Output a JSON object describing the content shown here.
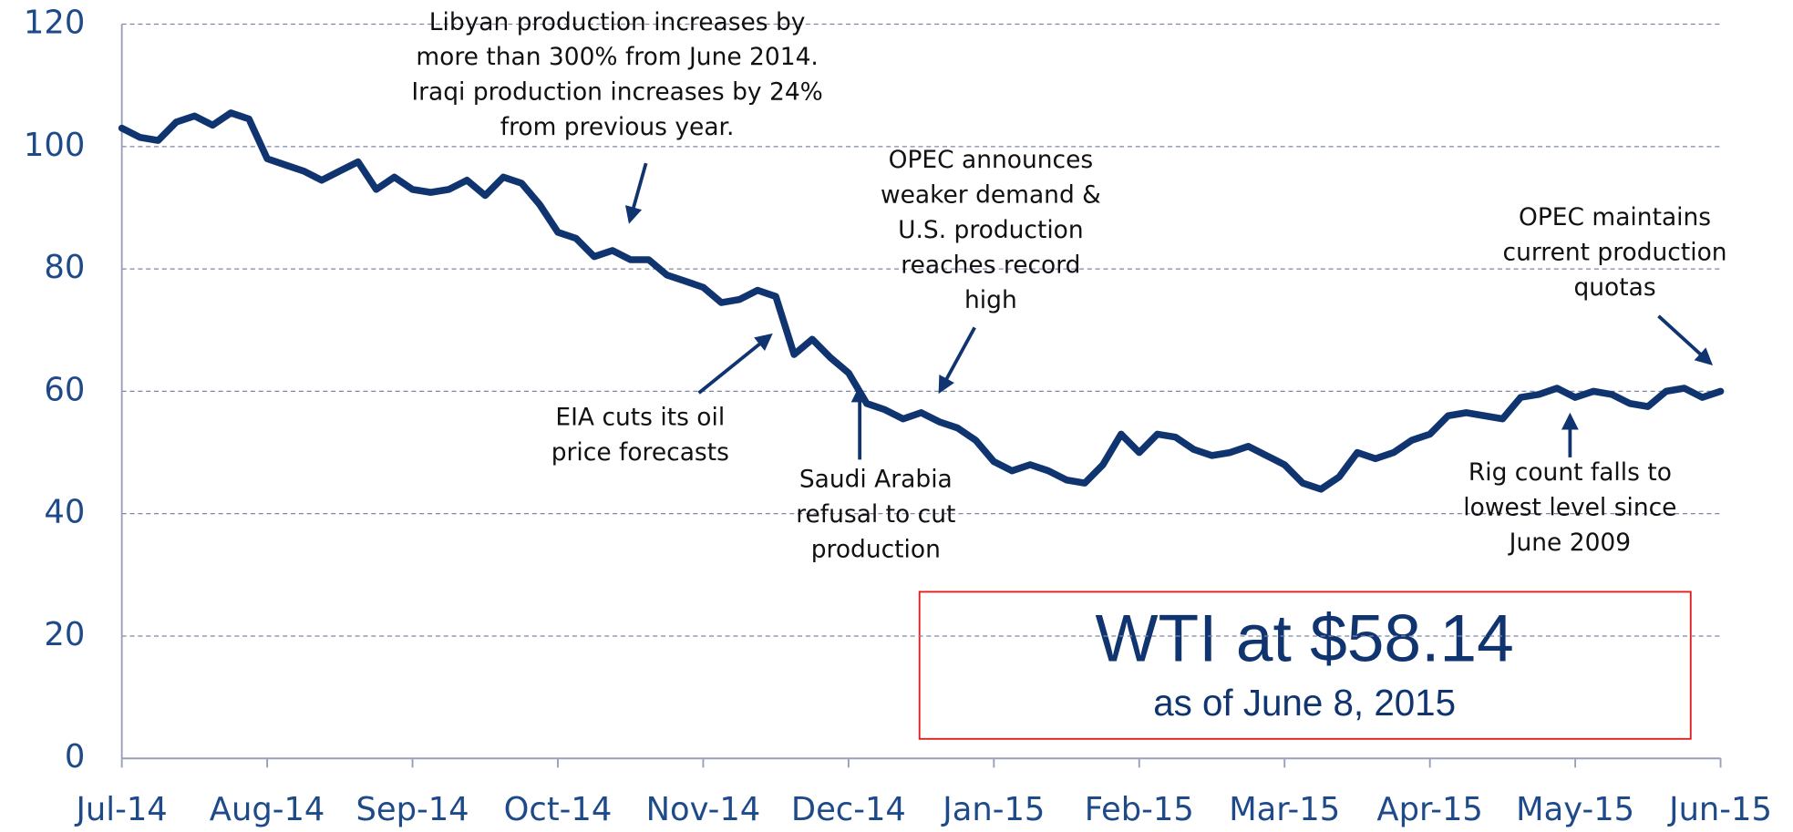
{
  "chart_data": {
    "type": "line",
    "categories": [
      "Jul-14",
      null,
      null,
      null,
      null,
      null,
      null,
      null,
      "Aug-14",
      null,
      null,
      null,
      null,
      null,
      null,
      null,
      "Sep-14",
      null,
      null,
      null,
      null,
      null,
      null,
      null,
      "Oct-14",
      null,
      null,
      null,
      null,
      null,
      null,
      null,
      "Nov-14",
      null,
      null,
      null,
      null,
      null,
      null,
      null,
      "Dec-14",
      null,
      null,
      null,
      null,
      null,
      null,
      null,
      "Jan-15",
      null,
      null,
      null,
      null,
      null,
      null,
      null,
      "Feb-15",
      null,
      null,
      null,
      null,
      null,
      null,
      null,
      "Mar-15",
      null,
      null,
      null,
      null,
      null,
      null,
      null,
      "Apr-15",
      null,
      null,
      null,
      null,
      null,
      null,
      null,
      "May-15",
      null,
      null,
      null,
      null,
      null,
      null,
      null,
      "Jun-15"
    ],
    "series": [
      {
        "color": "#0f3470",
        "values": [
          103,
          101.5,
          101,
          104,
          105,
          103.5,
          105.5,
          104.5,
          98,
          97,
          96,
          94.5,
          96,
          97.5,
          93,
          95,
          93,
          92.5,
          93,
          94.5,
          92,
          95,
          94,
          90.5,
          86,
          85,
          82,
          83,
          81.5,
          81.5,
          79,
          78,
          77,
          74.5,
          75,
          76.5,
          75.5,
          66,
          68.5,
          65.5,
          63,
          58,
          57,
          55.5,
          56.5,
          55,
          54,
          52,
          48.5,
          47,
          48,
          47,
          45.5,
          45,
          48,
          53,
          50,
          53,
          52.5,
          50.5,
          49.5,
          50,
          51,
          49.5,
          48,
          45,
          44,
          46,
          50,
          49,
          50,
          52,
          53,
          56,
          56.5,
          56,
          55.5,
          59,
          59.5,
          60.5,
          59,
          60,
          59.5,
          58,
          57.5,
          60,
          60.5,
          59,
          60
        ]
      }
    ],
    "ylim": [
      0,
      120
    ],
    "yticks": [
      0,
      20,
      40,
      60,
      80,
      100,
      120
    ],
    "grid": true,
    "annotations": [
      {
        "text": [
          "Libyan production increases by",
          "more than 300% from June 2014.",
          "Iraqi production increases by 24%",
          "from previous year."
        ]
      },
      {
        "text": [
          "OPEC announces",
          "weaker demand &",
          "U.S. production",
          "reaches record",
          "high"
        ]
      },
      {
        "text": [
          "OPEC maintains",
          "current production",
          "quotas"
        ]
      },
      {
        "text": [
          "EIA cuts its oil",
          "price forecasts"
        ]
      },
      {
        "text": [
          "Saudi Arabia",
          "refusal to cut",
          "production"
        ]
      },
      {
        "text": [
          "Rig count falls to",
          "lowest level since",
          "June 2009"
        ]
      }
    ],
    "callout": {
      "headline": "WTI at $58.14",
      "subline": "as of June 8, 2015"
    }
  }
}
